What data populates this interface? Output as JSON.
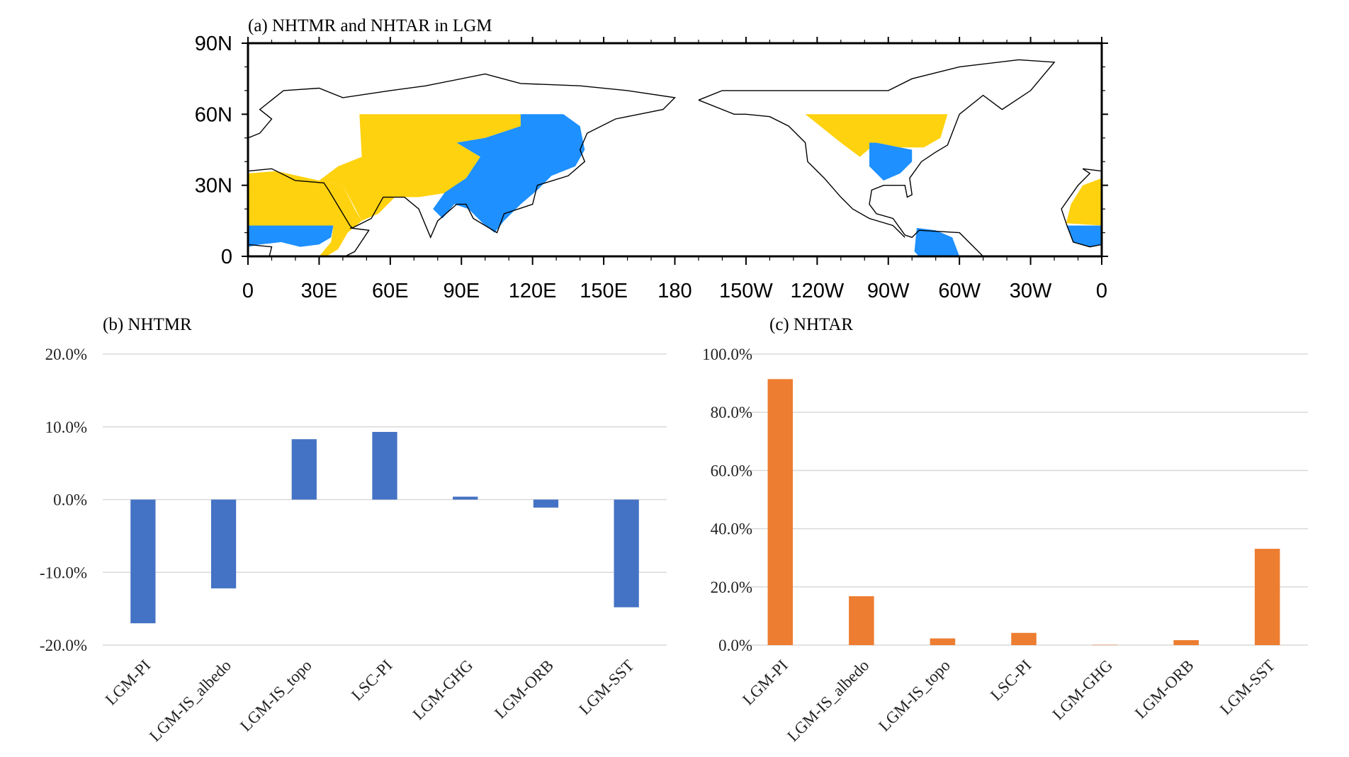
{
  "colors": {
    "yellow": "#FFD20F",
    "blue": "#1E90FF",
    "bar_b": "#4472C4",
    "bar_c": "#ED7D31",
    "grid": "#D9D9D9"
  },
  "map": {
    "title": "(a) NHTMR and NHTAR in LGM",
    "lat_labels": [
      "90N",
      "60N",
      "30N",
      "0"
    ],
    "lon_labels": [
      "0",
      "30E",
      "60E",
      "90E",
      "120E",
      "150E",
      "180",
      "150W",
      "120W",
      "90W",
      "60W",
      "30W",
      "0"
    ]
  },
  "chart_data": [
    {
      "type": "bar",
      "title": "(b) NHTMR",
      "categories": [
        "LGM-PI",
        "LGM-IS_albedo",
        "LGM-IS_topo",
        "LSC-PI",
        "LGM-GHG",
        "LGM-ORB",
        "LGM-SST"
      ],
      "values": [
        -17.0,
        -12.2,
        8.3,
        9.3,
        0.4,
        -1.1,
        -14.8
      ],
      "ylim": [
        -20,
        20
      ],
      "yticks": [
        "20.0%",
        "10.0%",
        "0.0%",
        "-10.0%",
        "-20.0%"
      ],
      "ytick_values": [
        20,
        10,
        0,
        -10,
        -20
      ],
      "grid": true,
      "xlabel": "",
      "ylabel": ""
    },
    {
      "type": "bar",
      "title": "(c) NHTAR",
      "categories": [
        "LGM-PI",
        "LGM-IS_albedo",
        "LGM-IS_topo",
        "LSC-PI",
        "LGM-GHG",
        "LGM-ORB",
        "LGM-SST"
      ],
      "values": [
        91.4,
        16.8,
        2.3,
        4.2,
        0.1,
        1.7,
        33.1
      ],
      "ylim": [
        0,
        100
      ],
      "yticks": [
        "100.0%",
        "80.0%",
        "60.0%",
        "40.0%",
        "20.0%",
        "0.0%"
      ],
      "ytick_values": [
        100,
        80,
        60,
        40,
        20,
        0
      ],
      "grid": true,
      "xlabel": "",
      "ylabel": ""
    }
  ]
}
